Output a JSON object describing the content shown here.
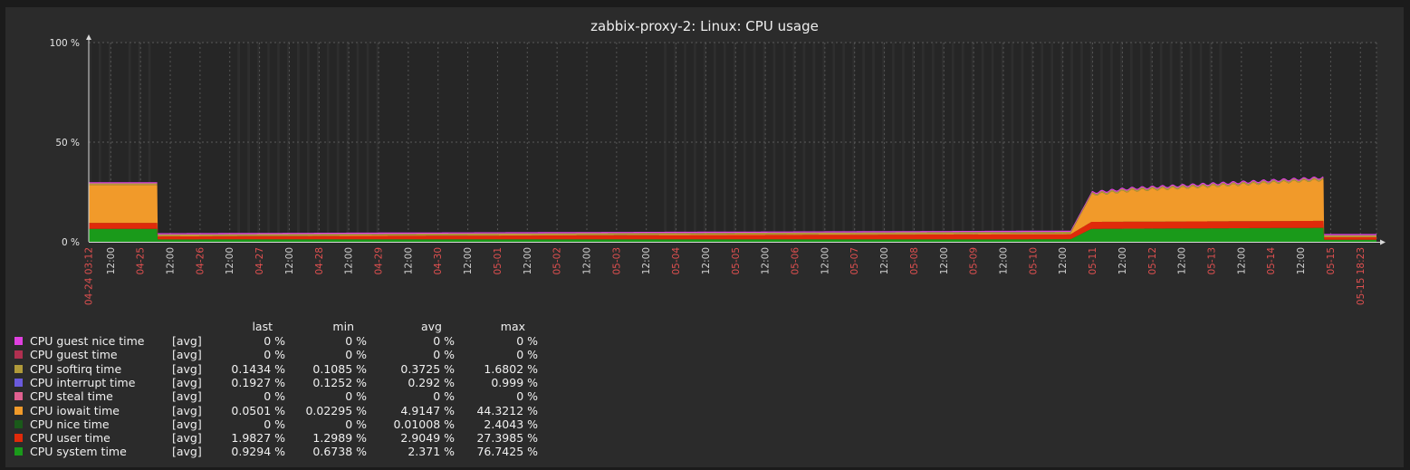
{
  "chart_data": {
    "type": "area",
    "stacked": true,
    "title": "zabbix-proxy-2: Linux: CPU usage",
    "ylim": [
      0,
      100
    ],
    "y_ticks": [
      {
        "value": 0,
        "label": "0 %"
      },
      {
        "value": 50,
        "label": "50 %"
      },
      {
        "value": 100,
        "label": "100 %"
      }
    ],
    "x_ticks": [
      {
        "label": "04-24 03:12",
        "color": "#e05050"
      },
      {
        "label": "12:00",
        "color": "#d0d0d0"
      },
      {
        "label": "04-25",
        "color": "#e05050"
      },
      {
        "label": "12:00",
        "color": "#d0d0d0"
      },
      {
        "label": "04-26",
        "color": "#e05050"
      },
      {
        "label": "12:00",
        "color": "#d0d0d0"
      },
      {
        "label": "04-27",
        "color": "#e05050"
      },
      {
        "label": "12:00",
        "color": "#d0d0d0"
      },
      {
        "label": "04-28",
        "color": "#e05050"
      },
      {
        "label": "12:00",
        "color": "#d0d0d0"
      },
      {
        "label": "04-29",
        "color": "#e05050"
      },
      {
        "label": "12:00",
        "color": "#d0d0d0"
      },
      {
        "label": "04-30",
        "color": "#e05050"
      },
      {
        "label": "12:00",
        "color": "#d0d0d0"
      },
      {
        "label": "05-01",
        "color": "#e05050"
      },
      {
        "label": "12:00",
        "color": "#d0d0d0"
      },
      {
        "label": "05-02",
        "color": "#e05050"
      },
      {
        "label": "12:00",
        "color": "#d0d0d0"
      },
      {
        "label": "05-03",
        "color": "#e05050"
      },
      {
        "label": "12:00",
        "color": "#d0d0d0"
      },
      {
        "label": "05-04",
        "color": "#e05050"
      },
      {
        "label": "12:00",
        "color": "#d0d0d0"
      },
      {
        "label": "05-05",
        "color": "#e05050"
      },
      {
        "label": "12:00",
        "color": "#d0d0d0"
      },
      {
        "label": "05-06",
        "color": "#e05050"
      },
      {
        "label": "12:00",
        "color": "#d0d0d0"
      },
      {
        "label": "05-07",
        "color": "#e05050"
      },
      {
        "label": "12:00",
        "color": "#d0d0d0"
      },
      {
        "label": "05-08",
        "color": "#e05050"
      },
      {
        "label": "12:00",
        "color": "#d0d0d0"
      },
      {
        "label": "05-09",
        "color": "#e05050"
      },
      {
        "label": "12:00",
        "color": "#d0d0d0"
      },
      {
        "label": "05-10",
        "color": "#e05050"
      },
      {
        "label": "12:00",
        "color": "#d0d0d0"
      },
      {
        "label": "05-11",
        "color": "#e05050"
      },
      {
        "label": "12:00",
        "color": "#d0d0d0"
      },
      {
        "label": "05-12",
        "color": "#e05050"
      },
      {
        "label": "12:00",
        "color": "#d0d0d0"
      },
      {
        "label": "05-13",
        "color": "#e05050"
      },
      {
        "label": "12:00",
        "color": "#d0d0d0"
      },
      {
        "label": "05-14",
        "color": "#e05050"
      },
      {
        "label": "12:00",
        "color": "#d0d0d0"
      },
      {
        "label": "05-15",
        "color": "#e05050"
      },
      {
        "label": "05-15 18:23",
        "color": "#e05050"
      }
    ],
    "x_days": [
      0.37,
      0.87,
      1.37,
      1.87,
      2.37,
      2.87,
      3.37,
      3.87,
      4.37,
      4.87,
      5.37,
      5.87,
      6.37,
      6.87,
      7.37,
      7.87,
      8.37,
      8.87,
      9.37,
      9.87,
      10.37,
      10.87,
      11.37,
      11.87,
      12.37,
      12.87,
      13.37,
      13.87,
      14.37,
      14.87,
      15.37,
      15.87,
      16.37,
      16.87,
      17.37,
      17.87,
      18.37,
      18.87,
      19.37,
      19.87,
      20.37,
      20.87,
      21.37
    ],
    "x_end": 21.64,
    "series_order_bottom_up": [
      "CPU system time",
      "CPU user time",
      "CPU iowait time",
      "CPU softirq time",
      "CPU guest nice time"
    ],
    "series": [
      {
        "name": "CPU system time",
        "color": "#1a9a1a",
        "x": [
          0,
          1.15,
          1.16,
          16.5,
          16.85,
          20.75,
          20.76,
          21.64
        ],
        "values": [
          6.5,
          6.5,
          1.2,
          1.3,
          6.5,
          7.0,
          1.0,
          1.0
        ]
      },
      {
        "name": "CPU user time",
        "color": "#e02a0a",
        "x": [
          0,
          1.15,
          1.16,
          16.5,
          16.85,
          20.75,
          20.76,
          21.64
        ],
        "values": [
          3.0,
          3.0,
          1.5,
          2.5,
          3.5,
          3.5,
          1.3,
          1.3
        ]
      },
      {
        "name": "CPU iowait time",
        "color": "#f19a2a",
        "x": [
          0,
          1.15,
          1.16,
          16.5,
          16.85,
          17.5,
          20.75,
          20.76,
          21.64
        ],
        "values": [
          19.0,
          19.0,
          0.2,
          0.4,
          13.5,
          15.5,
          20.5,
          0.2,
          0.2
        ]
      },
      {
        "name": "CPU softirq time",
        "color": "#b09a3a",
        "x": [
          0,
          21.64
        ],
        "values": [
          0.8,
          0.8
        ]
      },
      {
        "name": "CPU guest nice time",
        "color": "#e040e0",
        "x": [
          0,
          21.64
        ],
        "values": [
          0.6,
          0.6
        ]
      }
    ],
    "legend": {
      "headers": [
        "last",
        "min",
        "avg",
        "max"
      ],
      "rows": [
        {
          "name": "CPU guest nice time",
          "color": "#e040e0",
          "fn": "[avg]",
          "last": "0 %",
          "min": "0 %",
          "avg": "0 %",
          "max": "0 %"
        },
        {
          "name": "CPU guest time",
          "color": "#b03050",
          "fn": "[avg]",
          "last": "0 %",
          "min": "0 %",
          "avg": "0 %",
          "max": "0 %"
        },
        {
          "name": "CPU softirq time",
          "color": "#b09a3a",
          "fn": "[avg]",
          "last": "0.1434 %",
          "min": "0.1085 %",
          "avg": "0.3725 %",
          "max": "1.6802 %"
        },
        {
          "name": "CPU interrupt time",
          "color": "#6a5adc",
          "fn": "[avg]",
          "last": "0.1927 %",
          "min": "0.1252 %",
          "avg": "0.292 %",
          "max": "0.999 %"
        },
        {
          "name": "CPU steal time",
          "color": "#e06090",
          "fn": "[avg]",
          "last": "0 %",
          "min": "0 %",
          "avg": "0 %",
          "max": "0 %"
        },
        {
          "name": "CPU iowait time",
          "color": "#f19a2a",
          "fn": "[avg]",
          "last": "0.0501 %",
          "min": "0.02295 %",
          "avg": "4.9147 %",
          "max": "44.3212 %"
        },
        {
          "name": "CPU nice time",
          "color": "#1a5a1a",
          "fn": "[avg]",
          "last": "0 %",
          "min": "0 %",
          "avg": "0.01008 %",
          "max": "2.4043 %"
        },
        {
          "name": "CPU user time",
          "color": "#e02a0a",
          "fn": "[avg]",
          "last": "1.9827 %",
          "min": "1.2989 %",
          "avg": "2.9049 %",
          "max": "27.3985 %"
        },
        {
          "name": "CPU system time",
          "color": "#1a9a1a",
          "fn": "[avg]",
          "last": "0.9294 %",
          "min": "0.6738 %",
          "avg": "2.371 %",
          "max": "76.7425 %"
        }
      ]
    }
  }
}
